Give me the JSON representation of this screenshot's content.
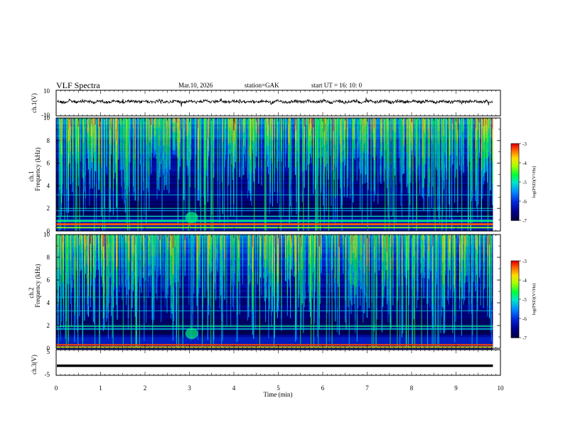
{
  "header": {
    "title": "VLF  Spectra",
    "date": "Mar.10, 2026",
    "station": "station=GAK",
    "start": "start  UT =   16: 10: 0"
  },
  "chart_data": [
    {
      "type": "line",
      "panel": "ch1_waveform",
      "ylabel": "ch.1(V)",
      "ylim": [
        -10,
        10
      ],
      "yticks": [
        "10",
        "-10"
      ],
      "note": "noisy waveform centered near 0 V",
      "x_range": [
        0,
        9.83
      ]
    },
    {
      "type": "heatmap",
      "panel": "ch1_spectrogram",
      "ylabel_top": "ch.1",
      "ylabel": "Frequency  (kHz)",
      "ylim": [
        0,
        10
      ],
      "yticks": [
        "0",
        "2",
        "4",
        "6",
        "8",
        "10"
      ],
      "colorbar": {
        "label": "log(PSD)(V²/Hz)",
        "range": [
          -7,
          -3
        ],
        "ticks": [
          "-3",
          "-4",
          "-5",
          "-6",
          "-7"
        ]
      },
      "colors": {
        "low": "#000080",
        "mid": "#00ff00",
        "high": "#ff0000"
      }
    },
    {
      "type": "heatmap",
      "panel": "ch2_spectrogram",
      "ylabel_top": "ch.2",
      "ylabel": "Frequency  (kHz)",
      "ylim": [
        0,
        10
      ],
      "yticks": [
        "0",
        "2",
        "4",
        "6",
        "8",
        "10"
      ],
      "colorbar": {
        "label": "log(PSD)(V²/Hz)",
        "range": [
          -7,
          -3
        ],
        "ticks": [
          "-3",
          "-4",
          "-5",
          "-6",
          "-7"
        ]
      }
    },
    {
      "type": "line",
      "panel": "ch3_waveform",
      "ylabel": "ch.3(V)",
      "ylim": [
        -5,
        5
      ],
      "yticks": [
        "5",
        "-5"
      ],
      "constant_value": -1.2
    }
  ],
  "xaxis": {
    "label": "Time  (min)",
    "ticks": [
      "0",
      "1",
      "2",
      "3",
      "4",
      "5",
      "6",
      "7",
      "8",
      "9",
      "10"
    ],
    "range": [
      0,
      10
    ]
  }
}
